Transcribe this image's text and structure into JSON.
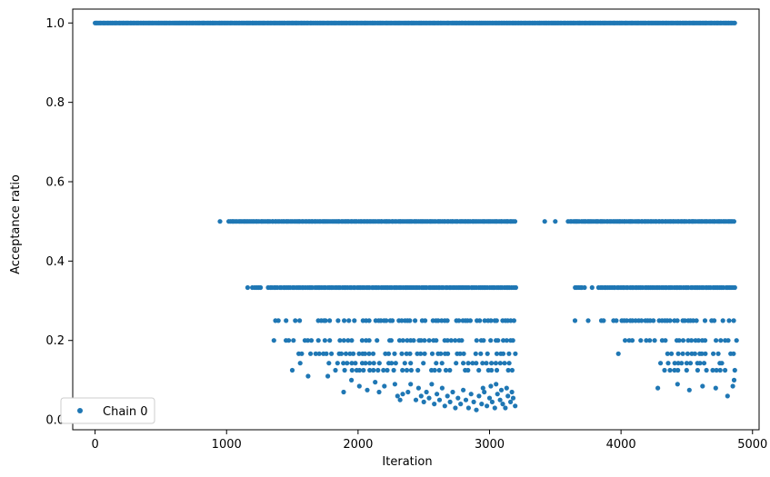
{
  "chart_data": {
    "type": "scatter",
    "title": "",
    "xlabel": "Iteration",
    "ylabel": "Acceptance ratio",
    "xlim": [
      -170,
      5050
    ],
    "ylim": [
      -0.025,
      1.035
    ],
    "x_ticks": [
      0,
      1000,
      2000,
      3000,
      4000,
      5000
    ],
    "y_ticks": [
      0.0,
      0.2,
      0.4,
      0.6,
      0.8,
      1.0
    ],
    "x_tick_labels": [
      "0",
      "1000",
      "2000",
      "3000",
      "4000",
      "5000"
    ],
    "y_tick_labels": [
      "0.0",
      "0.2",
      "0.4",
      "0.6",
      "0.8",
      "1.0"
    ],
    "grid": false,
    "legend_position": "lower-left",
    "marker_color": "#1f77b4",
    "series": [
      {
        "name": "Chain 0",
        "note": "Acceptance ratio per iteration; discrete levels 1, 1/2, 1/3, 1/4, 1/5, 1/6, 1/7, ... ; dense bands in [0,3200] and [3400,4870]",
        "bands": [
          {
            "y": 1.0,
            "x_ranges": [
              [
                0,
                4870
              ]
            ],
            "step": 8
          },
          {
            "y": 0.5,
            "x_ranges": [
              [
                950,
                950
              ],
              [
                1020,
                3200
              ],
              [
                3420,
                3420
              ],
              [
                3500,
                3500
              ],
              [
                3600,
                4870
              ]
            ],
            "step": 12
          },
          {
            "y": 0.3333,
            "x_ranges": [
              [
                1160,
                1160
              ],
              [
                1200,
                1260
              ],
              [
                1320,
                3200
              ],
              [
                3650,
                3720
              ],
              [
                3780,
                3780
              ],
              [
                3830,
                4870
              ]
            ],
            "step": 14
          },
          {
            "y": 0.25,
            "x_ranges": [
              [
                1370,
                1420
              ],
              [
                1450,
                3200
              ],
              [
                3650,
                3650
              ],
              [
                3750,
                3750
              ],
              [
                3850,
                4870
              ]
            ],
            "step": 22
          },
          {
            "y": 0.2,
            "x_ranges": [
              [
                1360,
                1360
              ],
              [
                1450,
                1650
              ],
              [
                1700,
                3200
              ],
              [
                4030,
                4870
              ]
            ],
            "step": 28
          },
          {
            "y": 0.1667,
            "x_ranges": [
              [
                1520,
                1600
              ],
              [
                1640,
                3200
              ],
              [
                3980,
                3980
              ],
              [
                4350,
                4870
              ]
            ],
            "step": 30
          },
          {
            "y": 0.1429,
            "x_ranges": [
              [
                1560,
                1560
              ],
              [
                1750,
                3200
              ],
              [
                4300,
                4870
              ]
            ],
            "step": 34
          },
          {
            "y": 0.125,
            "x_ranges": [
              [
                1500,
                1500
              ],
              [
                1800,
                3200
              ],
              [
                4330,
                4870
              ]
            ],
            "step": 36
          }
        ],
        "scatter_points": [
          [
            1620,
            0.11
          ],
          [
            1770,
            0.11
          ],
          [
            1890,
            0.07
          ],
          [
            1950,
            0.1
          ],
          [
            2010,
            0.085
          ],
          [
            2070,
            0.075
          ],
          [
            2130,
            0.095
          ],
          [
            2160,
            0.07
          ],
          [
            2200,
            0.085
          ],
          [
            2280,
            0.09
          ],
          [
            2300,
            0.06
          ],
          [
            2320,
            0.05
          ],
          [
            2340,
            0.065
          ],
          [
            2380,
            0.07
          ],
          [
            2400,
            0.09
          ],
          [
            2440,
            0.05
          ],
          [
            2460,
            0.08
          ],
          [
            2480,
            0.06
          ],
          [
            2500,
            0.045
          ],
          [
            2520,
            0.07
          ],
          [
            2540,
            0.055
          ],
          [
            2560,
            0.09
          ],
          [
            2580,
            0.04
          ],
          [
            2600,
            0.065
          ],
          [
            2620,
            0.05
          ],
          [
            2640,
            0.08
          ],
          [
            2660,
            0.035
          ],
          [
            2680,
            0.06
          ],
          [
            2700,
            0.045
          ],
          [
            2720,
            0.07
          ],
          [
            2740,
            0.03
          ],
          [
            2760,
            0.055
          ],
          [
            2780,
            0.04
          ],
          [
            2800,
            0.075
          ],
          [
            2820,
            0.05
          ],
          [
            2840,
            0.03
          ],
          [
            2860,
            0.065
          ],
          [
            2880,
            0.045
          ],
          [
            2900,
            0.025
          ],
          [
            2920,
            0.06
          ],
          [
            2940,
            0.04
          ],
          [
            2960,
            0.07
          ],
          [
            2980,
            0.035
          ],
          [
            3000,
            0.055
          ],
          [
            3020,
            0.045
          ],
          [
            3040,
            0.03
          ],
          [
            3060,
            0.065
          ],
          [
            3080,
            0.05
          ],
          [
            3100,
            0.04
          ],
          [
            3120,
            0.03
          ],
          [
            3140,
            0.06
          ],
          [
            3160,
            0.045
          ],
          [
            3180,
            0.055
          ],
          [
            3195,
            0.035
          ],
          [
            3010,
            0.085
          ],
          [
            3050,
            0.09
          ],
          [
            3090,
            0.075
          ],
          [
            3130,
            0.08
          ],
          [
            3170,
            0.07
          ],
          [
            2950,
            0.08
          ],
          [
            4280,
            0.08
          ],
          [
            4430,
            0.09
          ],
          [
            4520,
            0.075
          ],
          [
            4620,
            0.085
          ],
          [
            4720,
            0.08
          ],
          [
            4810,
            0.06
          ],
          [
            4850,
            0.085
          ],
          [
            4860,
            0.1
          ]
        ]
      }
    ]
  }
}
